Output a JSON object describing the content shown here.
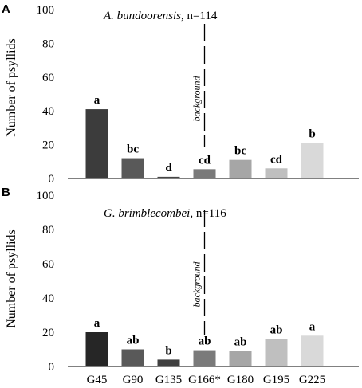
{
  "chart_data": [
    {
      "type": "bar",
      "panel": "A",
      "title_species": "A. bundoorensis",
      "title_n": ", n=114",
      "ylabel": "Number of psyllids",
      "ylim": [
        0,
        100
      ],
      "yticks": [
        "0",
        "20",
        "40",
        "60",
        "80",
        "100"
      ],
      "categories": [
        "G45",
        "G90",
        "G135",
        "G166*",
        "G180",
        "G195",
        "G225"
      ],
      "values": [
        41,
        12,
        1,
        5.5,
        11,
        6,
        21
      ],
      "labels": [
        "a",
        "bc",
        "d",
        "cd",
        "bc",
        "cd",
        "b"
      ],
      "colors": [
        "#3c3c3c",
        "#595959",
        "#454545",
        "#7a7a7a",
        "#a6a6a6",
        "#bfbfbf",
        "#d9d9d9"
      ],
      "background_label": "background"
    },
    {
      "type": "bar",
      "panel": "B",
      "title_species": "G. brimblecombei",
      "title_n": ", n=116",
      "ylabel": "Number of psyllids",
      "ylim": [
        0,
        100
      ],
      "yticks": [
        "0",
        "20",
        "40",
        "60",
        "80",
        "100"
      ],
      "categories": [
        "G45",
        "G90",
        "G135",
        "G166*",
        "G180",
        "G195",
        "G225"
      ],
      "values": [
        20,
        10,
        4,
        9.5,
        9,
        16,
        18
      ],
      "labels": [
        "a",
        "ab",
        "b",
        "ab",
        "ab",
        "ab",
        "a"
      ],
      "colors": [
        "#262626",
        "#595959",
        "#404040",
        "#7a7a7a",
        "#a6a6a6",
        "#bfbfbf",
        "#d9d9d9"
      ],
      "background_label": "background"
    }
  ]
}
